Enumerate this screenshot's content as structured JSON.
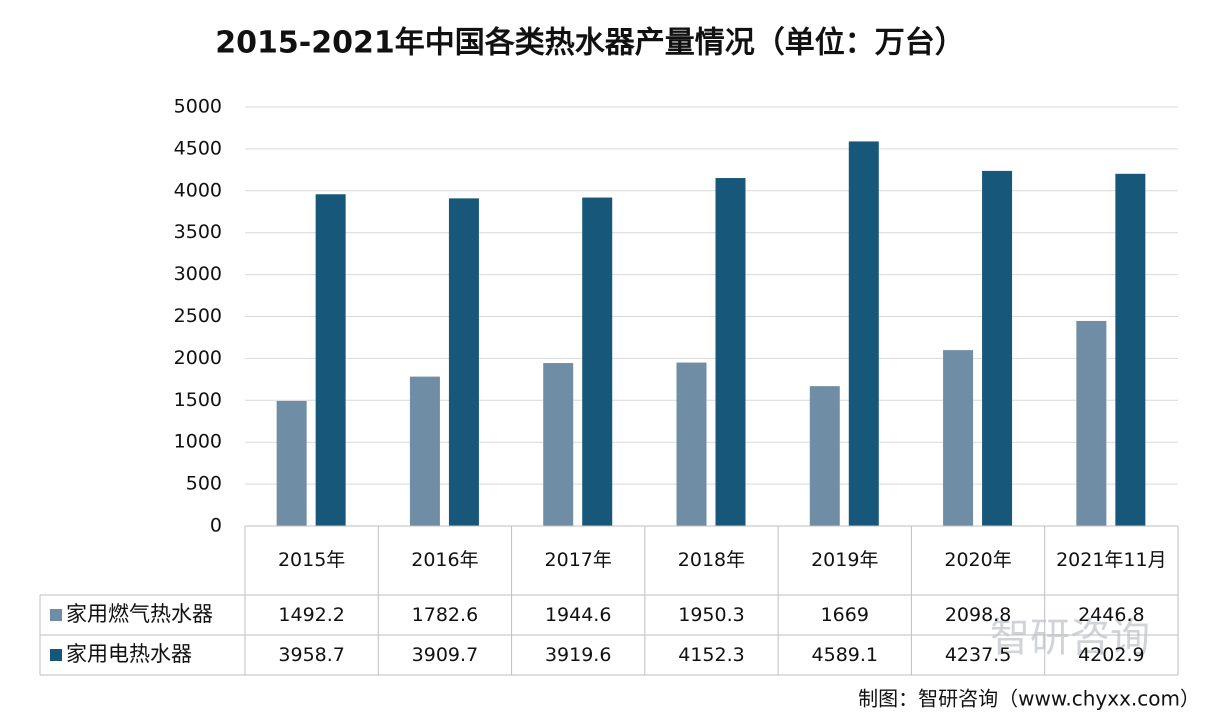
{
  "chart_data": {
    "type": "bar",
    "title": "2015-2021年中国各类热水器产量情况（单位：万台）",
    "categories": [
      "2015年",
      "2016年",
      "2017年",
      "2018年",
      "2019年",
      "2020年",
      "2021年11月"
    ],
    "series": [
      {
        "name": "家用燃气热水器",
        "color": "#6f8ea5",
        "values": [
          1492.2,
          1782.6,
          1944.6,
          1950.3,
          1669,
          2098.8,
          2446.8
        ]
      },
      {
        "name": "家用电热水器",
        "color": "#17587a",
        "values": [
          3958.7,
          3909.7,
          3919.6,
          4152.3,
          4589.1,
          4237.5,
          4202.9
        ]
      }
    ],
    "ylim": [
      0,
      5000
    ],
    "yticks": [
      0,
      500,
      1000,
      1500,
      2000,
      2500,
      3000,
      3500,
      4000,
      4500,
      5000
    ],
    "grid": true,
    "data_table": true,
    "watermark": "智研咨询",
    "source": "制图：智研咨询（www.chyxx.com）"
  }
}
